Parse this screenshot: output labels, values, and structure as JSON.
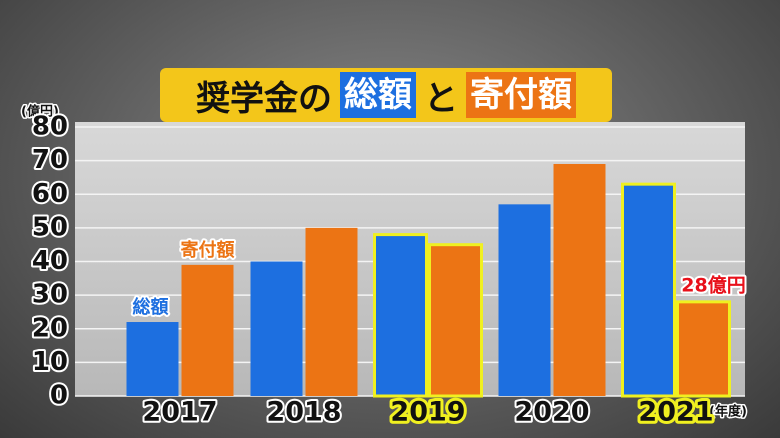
{
  "chart_data": {
    "type": "bar",
    "title": [
      "奨学金の",
      "総額",
      "と",
      "寄付額"
    ],
    "y_unit": "(億円)",
    "x_unit": "(年度)",
    "categories": [
      "2017",
      "2018",
      "2019",
      "2020",
      "2021"
    ],
    "series": [
      {
        "name": "総額",
        "color": "#1d6fe0",
        "values": [
          22,
          40,
          48,
          57,
          63
        ]
      },
      {
        "name": "寄付額",
        "color": "#ec7414",
        "values": [
          39,
          50,
          45,
          69,
          28
        ]
      }
    ],
    "annotation": "28億円",
    "highlight": [
      2,
      4
    ],
    "ylim": [
      0,
      80
    ],
    "yticks": [
      0,
      10,
      20,
      30,
      40,
      50,
      60,
      70,
      80
    ],
    "grid": true
  }
}
